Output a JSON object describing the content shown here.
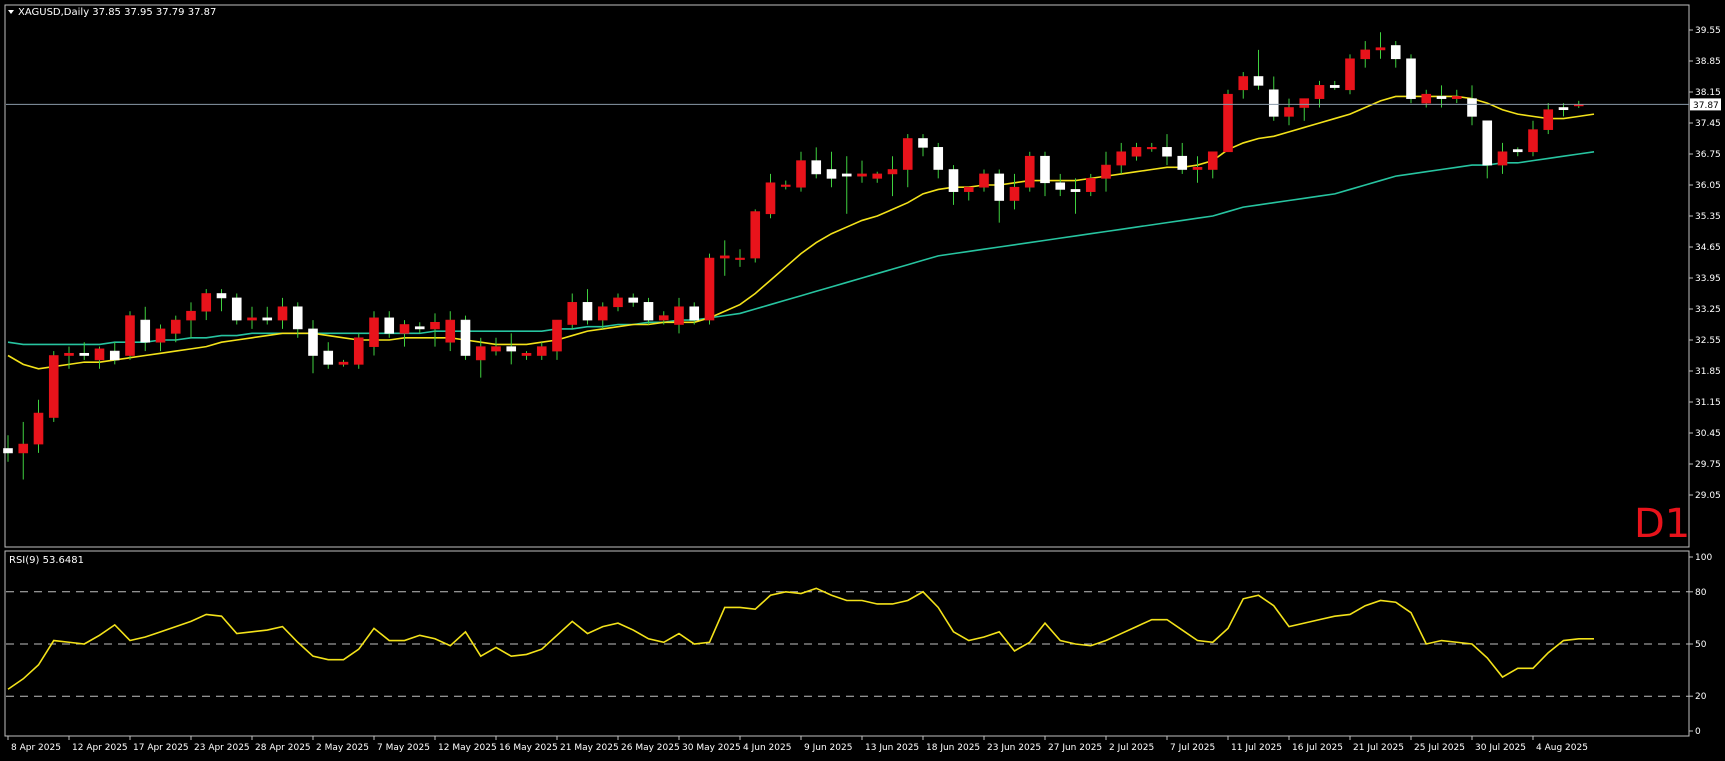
{
  "chart_data": {
    "type": "candlestick",
    "symbol_header": "XAGUSD,Daily  37.85 37.95 37.79 37.87",
    "timeframe_badge": "D1",
    "current_price_label": "37.87",
    "current_price": 37.87,
    "price_axis": {
      "range": [
        28.9,
        40.0
      ],
      "ticks": [
        "39.55",
        "38.85",
        "38.15",
        "37.45",
        "36.75",
        "36.05",
        "35.35",
        "34.65",
        "33.95",
        "33.25",
        "32.55",
        "31.85",
        "31.15",
        "30.45",
        "29.75",
        "29.05"
      ]
    },
    "x_axis_labels": [
      "8 Apr 2025",
      "12 Apr 2025",
      "17 Apr 2025",
      "23 Apr 2025",
      "28 Apr 2025",
      "2 May 2025",
      "7 May 2025",
      "12 May 2025",
      "16 May 2025",
      "21 May 2025",
      "26 May 2025",
      "30 May 2025",
      "4 Jun 2025",
      "9 Jun 2025",
      "13 Jun 2025",
      "18 Jun 2025",
      "23 Jun 2025",
      "27 Jun 2025",
      "2 Jul 2025",
      "7 Jul 2025",
      "11 Jul 2025",
      "16 Jul 2025",
      "21 Jul 2025",
      "25 Jul 2025",
      "30 Jul 2025",
      "4 Aug 2025"
    ],
    "x_label_bar_index": [
      0,
      4,
      8,
      12,
      16,
      20,
      24,
      28,
      32,
      36,
      40,
      44,
      48,
      52,
      56,
      60,
      64,
      68,
      72,
      76,
      80,
      84,
      88,
      92,
      96,
      100
    ],
    "candles": [
      [
        30.1,
        30.4,
        29.8,
        30.0
      ],
      [
        30.0,
        30.7,
        29.4,
        30.2
      ],
      [
        30.2,
        31.2,
        30.0,
        30.9
      ],
      [
        30.8,
        32.3,
        30.7,
        32.2
      ],
      [
        32.2,
        32.4,
        31.9,
        32.25
      ],
      [
        32.25,
        32.5,
        32.1,
        32.2
      ],
      [
        32.1,
        32.4,
        31.9,
        32.35
      ],
      [
        32.3,
        32.5,
        32.0,
        32.1
      ],
      [
        32.2,
        33.2,
        32.1,
        33.1
      ],
      [
        33.0,
        33.3,
        32.3,
        32.5
      ],
      [
        32.5,
        32.9,
        32.3,
        32.8
      ],
      [
        32.7,
        33.1,
        32.5,
        33.0
      ],
      [
        33.0,
        33.4,
        32.6,
        33.2
      ],
      [
        33.2,
        33.7,
        33.0,
        33.6
      ],
      [
        33.6,
        33.7,
        33.2,
        33.5
      ],
      [
        33.5,
        33.6,
        32.9,
        33.0
      ],
      [
        33.0,
        33.3,
        32.8,
        33.05
      ],
      [
        33.05,
        33.3,
        32.9,
        33.0
      ],
      [
        33.0,
        33.5,
        32.8,
        33.3
      ],
      [
        33.3,
        33.4,
        32.6,
        32.8
      ],
      [
        32.8,
        33.0,
        31.8,
        32.2
      ],
      [
        32.3,
        32.5,
        31.9,
        32.0
      ],
      [
        32.0,
        32.1,
        31.95,
        32.05
      ],
      [
        32.0,
        32.7,
        31.9,
        32.6
      ],
      [
        32.4,
        33.2,
        32.2,
        33.05
      ],
      [
        33.05,
        33.2,
        32.6,
        32.7
      ],
      [
        32.7,
        33.0,
        32.4,
        32.9
      ],
      [
        32.85,
        32.95,
        32.7,
        32.8
      ],
      [
        32.8,
        33.15,
        32.4,
        32.95
      ],
      [
        32.5,
        33.2,
        32.3,
        33.0
      ],
      [
        33.0,
        33.1,
        32.1,
        32.2
      ],
      [
        32.1,
        32.6,
        31.7,
        32.4
      ],
      [
        32.3,
        32.6,
        32.2,
        32.4
      ],
      [
        32.4,
        32.7,
        32.0,
        32.3
      ],
      [
        32.2,
        32.3,
        32.1,
        32.25
      ],
      [
        32.2,
        32.5,
        32.1,
        32.4
      ],
      [
        32.3,
        33.0,
        32.1,
        33.0
      ],
      [
        32.9,
        33.6,
        32.8,
        33.4
      ],
      [
        33.4,
        33.7,
        32.9,
        33.0
      ],
      [
        33.0,
        33.4,
        32.8,
        33.3
      ],
      [
        33.3,
        33.6,
        33.2,
        33.5
      ],
      [
        33.5,
        33.6,
        33.3,
        33.4
      ],
      [
        33.4,
        33.5,
        32.9,
        33.0
      ],
      [
        33.0,
        33.2,
        32.9,
        33.1
      ],
      [
        32.9,
        33.5,
        32.7,
        33.3
      ],
      [
        33.3,
        33.4,
        32.9,
        33.0
      ],
      [
        33.0,
        34.5,
        32.9,
        34.4
      ],
      [
        34.4,
        34.8,
        34.0,
        34.45
      ],
      [
        34.4,
        34.6,
        34.2,
        34.4
      ],
      [
        34.4,
        35.5,
        34.3,
        35.45
      ],
      [
        35.4,
        36.3,
        35.3,
        36.1
      ],
      [
        36.05,
        36.15,
        35.95,
        36.05
      ],
      [
        36.0,
        36.8,
        35.9,
        36.6
      ],
      [
        36.6,
        36.9,
        36.2,
        36.3
      ],
      [
        36.4,
        36.8,
        36.0,
        36.2
      ],
      [
        36.3,
        36.7,
        35.4,
        36.25
      ],
      [
        36.25,
        36.6,
        36.1,
        36.3
      ],
      [
        36.2,
        36.35,
        36.1,
        36.3
      ],
      [
        36.3,
        36.7,
        35.8,
        36.4
      ],
      [
        36.4,
        37.2,
        36.0,
        37.1
      ],
      [
        37.1,
        37.2,
        36.7,
        36.9
      ],
      [
        36.9,
        37.0,
        36.2,
        36.4
      ],
      [
        36.4,
        36.5,
        35.6,
        35.9
      ],
      [
        35.9,
        36.0,
        35.7,
        36.0
      ],
      [
        36.0,
        36.4,
        35.9,
        36.3
      ],
      [
        36.3,
        36.4,
        35.2,
        35.7
      ],
      [
        35.7,
        36.3,
        35.5,
        36.0
      ],
      [
        36.0,
        36.8,
        35.9,
        36.7
      ],
      [
        36.7,
        36.8,
        35.8,
        36.1
      ],
      [
        36.1,
        36.3,
        35.8,
        35.95
      ],
      [
        35.95,
        36.2,
        35.4,
        35.9
      ],
      [
        35.9,
        36.3,
        35.8,
        36.2
      ],
      [
        36.2,
        36.8,
        35.9,
        36.5
      ],
      [
        36.5,
        37.0,
        36.3,
        36.8
      ],
      [
        36.7,
        37.0,
        36.6,
        36.9
      ],
      [
        36.9,
        37.0,
        36.8,
        36.9
      ],
      [
        36.9,
        37.2,
        36.5,
        36.7
      ],
      [
        36.7,
        37.0,
        36.3,
        36.4
      ],
      [
        36.4,
        36.7,
        36.1,
        36.45
      ],
      [
        36.4,
        36.8,
        36.2,
        36.8
      ],
      [
        36.8,
        38.2,
        36.8,
        38.1
      ],
      [
        38.2,
        38.6,
        38.0,
        38.5
      ],
      [
        38.5,
        39.1,
        38.2,
        38.3
      ],
      [
        38.2,
        38.5,
        37.5,
        37.6
      ],
      [
        37.6,
        38.0,
        37.4,
        37.8
      ],
      [
        37.8,
        38.0,
        37.5,
        38.0
      ],
      [
        38.0,
        38.4,
        37.8,
        38.3
      ],
      [
        38.3,
        38.4,
        38.2,
        38.25
      ],
      [
        38.2,
        39.0,
        38.1,
        38.9
      ],
      [
        38.9,
        39.3,
        38.7,
        39.1
      ],
      [
        39.1,
        39.5,
        38.9,
        39.15
      ],
      [
        39.2,
        39.3,
        38.7,
        38.9
      ],
      [
        38.9,
        39.0,
        37.9,
        38.0
      ],
      [
        37.9,
        38.2,
        37.8,
        38.1
      ],
      [
        38.05,
        38.3,
        37.8,
        38.0
      ],
      [
        38.0,
        38.2,
        37.9,
        38.05
      ],
      [
        38.0,
        38.3,
        37.4,
        37.6
      ],
      [
        37.5,
        37.5,
        36.2,
        36.5
      ],
      [
        36.5,
        37.0,
        36.3,
        36.8
      ],
      [
        36.85,
        36.9,
        36.7,
        36.8
      ],
      [
        36.8,
        37.5,
        36.7,
        37.3
      ],
      [
        37.3,
        37.9,
        37.2,
        37.75
      ],
      [
        37.8,
        37.9,
        37.6,
        37.75
      ],
      [
        37.85,
        37.95,
        37.79,
        37.87
      ]
    ],
    "ma_yellow": [
      32.2,
      32.0,
      31.9,
      31.95,
      32.0,
      32.05,
      32.05,
      32.1,
      32.15,
      32.2,
      32.25,
      32.3,
      32.35,
      32.4,
      32.5,
      32.55,
      32.6,
      32.65,
      32.7,
      32.7,
      32.7,
      32.65,
      32.6,
      32.55,
      32.55,
      32.55,
      32.6,
      32.6,
      32.6,
      32.6,
      32.55,
      32.5,
      32.45,
      32.45,
      32.45,
      32.5,
      32.55,
      32.65,
      32.75,
      32.8,
      32.85,
      32.9,
      32.9,
      32.95,
      32.95,
      32.95,
      33.05,
      33.2,
      33.35,
      33.6,
      33.9,
      34.2,
      34.5,
      34.75,
      34.95,
      35.1,
      35.25,
      35.35,
      35.5,
      35.65,
      35.85,
      35.95,
      36.0,
      36.0,
      36.05,
      36.05,
      36.1,
      36.15,
      36.15,
      36.15,
      36.15,
      36.2,
      36.25,
      36.3,
      36.35,
      36.4,
      36.45,
      36.45,
      36.5,
      36.6,
      36.85,
      37.0,
      37.1,
      37.15,
      37.25,
      37.35,
      37.45,
      37.55,
      37.65,
      37.8,
      37.95,
      38.05,
      38.05,
      38.05,
      38.05,
      38.05,
      38.0,
      37.9,
      37.75,
      37.65,
      37.6,
      37.55,
      37.55,
      37.6,
      37.65
    ],
    "ma_green": [
      32.5,
      32.45,
      32.45,
      32.45,
      32.45,
      32.45,
      32.45,
      32.5,
      32.5,
      32.5,
      32.55,
      32.55,
      32.6,
      32.6,
      32.65,
      32.65,
      32.7,
      32.7,
      32.7,
      32.7,
      32.7,
      32.7,
      32.7,
      32.7,
      32.7,
      32.7,
      32.7,
      32.7,
      32.75,
      32.75,
      32.75,
      32.75,
      32.75,
      32.75,
      32.75,
      32.75,
      32.8,
      32.8,
      32.85,
      32.85,
      32.9,
      32.9,
      32.95,
      32.95,
      33.0,
      33.0,
      33.05,
      33.1,
      33.15,
      33.25,
      33.35,
      33.45,
      33.55,
      33.65,
      33.75,
      33.85,
      33.95,
      34.05,
      34.15,
      34.25,
      34.35,
      34.45,
      34.5,
      34.55,
      34.6,
      34.65,
      34.7,
      34.75,
      34.8,
      34.85,
      34.9,
      34.95,
      35.0,
      35.05,
      35.1,
      35.15,
      35.2,
      35.25,
      35.3,
      35.35,
      35.45,
      35.55,
      35.6,
      35.65,
      35.7,
      35.75,
      35.8,
      35.85,
      35.95,
      36.05,
      36.15,
      36.25,
      36.3,
      36.35,
      36.4,
      36.45,
      36.5,
      36.5,
      36.55,
      36.55,
      36.6,
      36.65,
      36.7,
      36.75,
      36.8
    ],
    "rsi": {
      "label": "RSI(9) 53.6481",
      "levels": [
        20,
        50,
        80
      ],
      "ticks": [
        "100",
        "80",
        "50",
        "20",
        "0"
      ],
      "values": [
        24,
        30,
        38,
        52,
        51,
        50,
        55,
        61,
        52,
        54,
        57,
        60,
        63,
        67,
        66,
        56,
        57,
        58,
        60,
        51,
        43,
        41,
        41,
        47,
        59,
        52,
        52,
        55,
        53,
        49,
        57,
        43,
        48,
        43,
        44,
        47,
        55,
        63,
        56,
        60,
        62,
        58,
        53,
        51,
        56,
        50,
        51,
        71,
        71,
        70,
        78,
        80,
        79,
        82,
        78,
        75,
        75,
        73,
        73,
        75,
        80,
        71,
        57,
        52,
        54,
        57,
        46,
        51,
        62,
        52,
        50,
        49,
        52,
        56,
        60,
        64,
        64,
        58,
        52,
        51,
        59,
        76,
        78,
        72,
        60,
        62,
        64,
        66,
        67,
        72,
        75,
        74,
        68,
        50,
        52,
        51,
        50,
        42,
        31,
        36,
        36,
        45,
        52,
        53,
        53
      ]
    }
  }
}
